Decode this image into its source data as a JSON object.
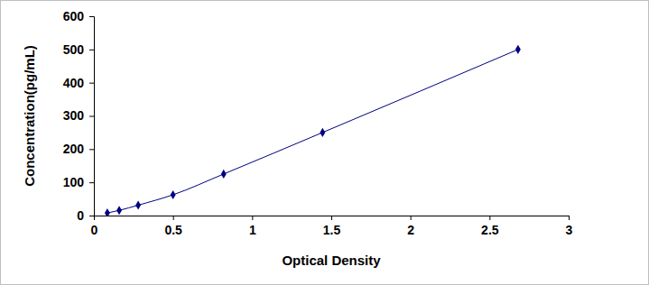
{
  "chart_data": {
    "type": "line",
    "x_label": "Optical Density",
    "y_label": "Concentration(pg/mL)",
    "x": [
      0.085,
      0.16,
      0.28,
      0.5,
      0.82,
      1.445,
      2.68
    ],
    "values": [
      7.8,
      15.6,
      31.25,
      62.5,
      125,
      250,
      500
    ],
    "color": "#000080",
    "marker": "diamond",
    "line_style": "solid",
    "xlim": [
      0,
      3
    ],
    "ylim": [
      0,
      600
    ],
    "xticks": [
      0,
      0.5,
      1,
      1.5,
      2,
      2.5,
      3
    ],
    "yticks": [
      0,
      100,
      200,
      300,
      400,
      500,
      600
    ],
    "grid": false
  }
}
